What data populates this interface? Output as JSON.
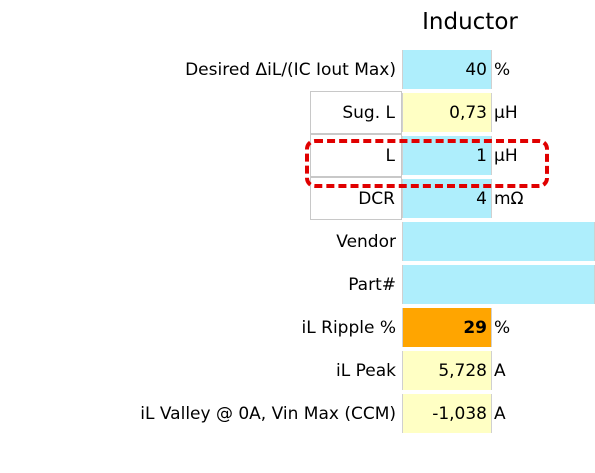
{
  "header": {
    "title": "Inductor"
  },
  "rows": [
    {
      "label": "Desired ΔiL/(IC Iout Max)",
      "value": "40",
      "unit": "%",
      "color": "#aeeefc"
    },
    {
      "label": "Sug. L",
      "value": "0,73",
      "unit": "µH",
      "color": "#ffffc4",
      "label_boxed": true
    },
    {
      "label": "L",
      "value": "1",
      "unit": "µH",
      "color": "#aeeefc",
      "label_boxed": true
    },
    {
      "label": "DCR",
      "value": "4",
      "unit": "mΩ",
      "color": "#aeeefc",
      "label_boxed": true
    },
    {
      "label": "Vendor",
      "color": "#aeeefc",
      "wide": true
    },
    {
      "label": "Part#",
      "color": "#aeeefc",
      "wide": true
    },
    {
      "label": "iL Ripple %",
      "value": "29",
      "unit": "%",
      "color": "#ffa500",
      "bold": true
    },
    {
      "label": "iL Peak",
      "value": "5,728",
      "unit": "A",
      "color": "#ffffc4"
    },
    {
      "label": "iL Valley @ 0A, Vin Max (CCM)",
      "value": "-1,038",
      "unit": "A",
      "color": "#ffffc4"
    }
  ]
}
